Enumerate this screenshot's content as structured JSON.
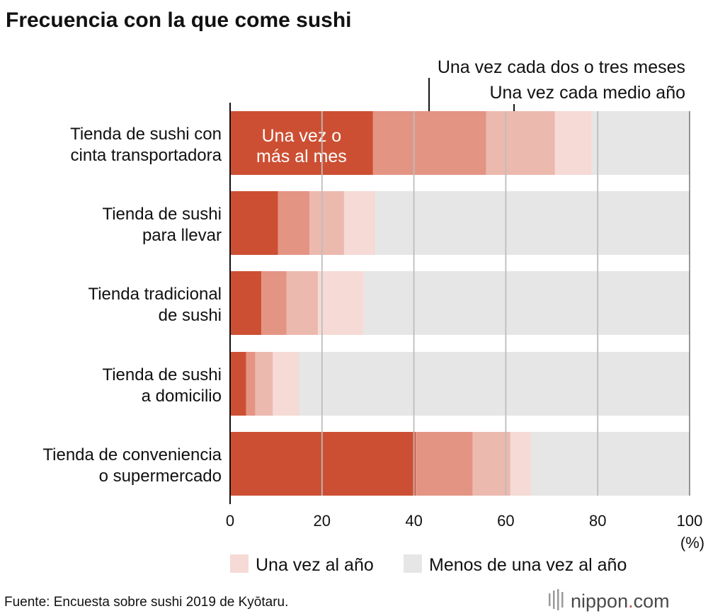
{
  "chart_data": {
    "type": "bar",
    "orientation": "horizontal",
    "stacked": true,
    "title": "Frecuencia con la que come sushi",
    "categories": [
      [
        "Tienda de sushi con",
        "cinta transportadora"
      ],
      [
        "Tienda de sushi",
        "para llevar"
      ],
      [
        "Tienda tradicional",
        "de sushi"
      ],
      [
        "Tienda de sushi",
        "a domicilio"
      ],
      [
        "Tienda de conveniencia",
        "o supermercado"
      ]
    ],
    "series": [
      {
        "name": "Una vez o más al mes",
        "label_lines": [
          "Una vez o",
          "más al mes"
        ],
        "color": "#cd4f33",
        "values": [
          31.1,
          10.4,
          6.8,
          3.5,
          40.4
        ]
      },
      {
        "name": "",
        "color": "#e49483",
        "values": [
          24.6,
          6.9,
          5.5,
          2.0,
          12.4
        ]
      },
      {
        "name": "Una vez cada dos o tres meses",
        "color": "#ecb9ae",
        "values": [
          15.0,
          7.5,
          6.8,
          3.8,
          8.2
        ]
      },
      {
        "name": "Una vez cada medio año",
        "color": "#f6dad5",
        "values": [
          8.0,
          6.8,
          10.0,
          5.8,
          4.6
        ]
      },
      {
        "name": "Una vez al año",
        "color": "#f6dad5",
        "values": [
          0,
          0,
          0,
          0,
          0
        ]
      },
      {
        "name": "Menos de una vez al año",
        "color": "#e6e6e6",
        "values": [
          21.3,
          68.4,
          70.9,
          84.9,
          34.4
        ]
      }
    ],
    "xlim": [
      0,
      100
    ],
    "xticks": [
      0,
      20,
      40,
      60,
      80,
      100
    ],
    "xunit": "(%)",
    "grid": true,
    "legend": [
      {
        "label": "Una vez al año",
        "color": "#f6dad5"
      },
      {
        "label": "Menos de una vez al año",
        "color": "#e6e6e6"
      }
    ],
    "annotations": [
      {
        "text": "Una vez cada dos o tres meses",
        "value": 43.3
      },
      {
        "text": "Una vez cada medio año",
        "value": 61.8
      }
    ]
  },
  "source": "Fuente: Encuesta sobre sushi 2019 de Kyōtaru.",
  "brand": {
    "main": "nippon",
    "dot": ".",
    "suffix": "com",
    "dot_color": "#cd4f33"
  }
}
